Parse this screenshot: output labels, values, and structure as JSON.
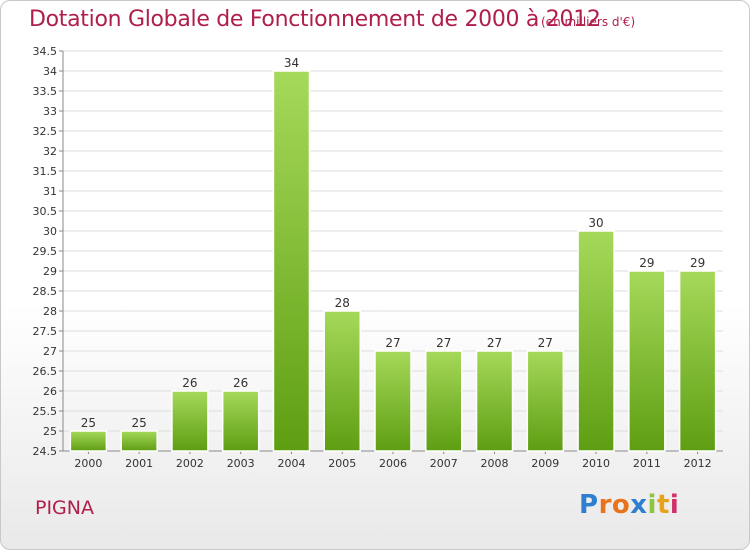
{
  "title": "Dotation Globale de Fonctionnement de 2000 à 2012",
  "subtitle": "(en milliers d'€)",
  "commune": "PIGNA",
  "logo": {
    "letters": [
      "P",
      "r",
      "o",
      "x",
      "i",
      "t",
      "i"
    ]
  },
  "colors": {
    "title": "#b01e4a",
    "bar_light": "#a6d95a",
    "bar_dark": "#5e9e12",
    "grid": "#dddddd"
  },
  "chart_data": {
    "type": "bar",
    "title": "Dotation Globale de Fonctionnement de 2000 à 2012",
    "subtitle": "(en milliers d'€)",
    "categories": [
      "2000",
      "2001",
      "2002",
      "2003",
      "2004",
      "2005",
      "2006",
      "2007",
      "2008",
      "2009",
      "2010",
      "2011",
      "2012"
    ],
    "values": [
      25,
      25,
      26,
      26,
      34,
      28,
      27,
      27,
      27,
      27,
      30,
      29,
      29
    ],
    "ylim": [
      24.5,
      34.5
    ],
    "yticks": [
      "24.5",
      "25",
      "25.5",
      "26",
      "26.5",
      "27",
      "27.5",
      "28",
      "28.5",
      "29",
      "29.5",
      "30",
      "30.5",
      "31",
      "31.5",
      "32",
      "32.5",
      "33",
      "33.5",
      "34",
      "34.5"
    ],
    "xlabel": "",
    "ylabel": "",
    "grid": true,
    "legend": "none"
  }
}
